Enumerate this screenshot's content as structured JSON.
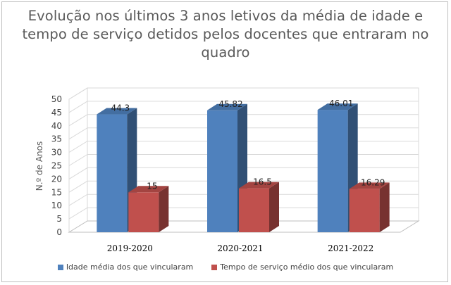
{
  "chart_data": {
    "type": "bar",
    "title": [
      "Evolução nos últimos 3 anos letivos da média de idade e",
      "tempo de serviço detidos pelos docentes que entraram no",
      "quadro"
    ],
    "ylabel": "N.º de Anos",
    "xlabel": "",
    "categories": [
      "2019-2020",
      "2020-2021",
      "2021-2022"
    ],
    "ylim": [
      0,
      50
    ],
    "yticks": [
      0,
      5,
      10,
      15,
      20,
      25,
      30,
      35,
      40,
      45,
      50
    ],
    "grid": true,
    "three_d": true,
    "legend_position": "bottom",
    "series": [
      {
        "name": "Idade média dos que vincularam",
        "values": [
          44.3,
          45.82,
          46.01
        ],
        "labels": [
          "44.3",
          "45.82",
          "46.01"
        ],
        "color": "#4f81bd"
      },
      {
        "name": "Tempo de serviço médio dos que vincularam",
        "values": [
          15,
          16.5,
          16.29
        ],
        "labels": [
          "15",
          "16.5",
          "16.29"
        ],
        "color": "#c0504d"
      }
    ]
  }
}
